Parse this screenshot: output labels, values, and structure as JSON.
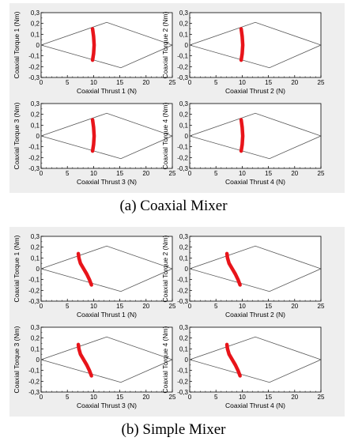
{
  "figure": {
    "caption_a": "(a) Coaxial Mixer",
    "caption_b": "(b) Simple Mixer"
  },
  "colors": {
    "panel_background": "#eeeeee",
    "envelope_line": "#555555",
    "trajectory": "#e8141a"
  },
  "chart_data": [
    {
      "type": "line",
      "group": "Coaxial Mixer",
      "xlabel": "Coaxial Thrust 1 (N)",
      "ylabel": "Coaxial Torque 1 (Nm)",
      "xlim": [
        0,
        25
      ],
      "ylim": [
        -0.3,
        0.3
      ],
      "xticks": [
        "0",
        "5",
        "10",
        "15",
        "20",
        "25"
      ],
      "yticks": [
        "-0,3",
        "-0,2",
        "-0,1",
        "0",
        "0,1",
        "0,2",
        "0,3"
      ],
      "envelope": [
        [
          0,
          0
        ],
        [
          12.5,
          0.21
        ],
        [
          25,
          0
        ],
        [
          15.2,
          -0.21
        ],
        [
          0,
          0
        ]
      ],
      "trajectory": [
        [
          9.8,
          0.15
        ],
        [
          10.0,
          0.08
        ],
        [
          10.1,
          0.0
        ],
        [
          10.0,
          -0.08
        ],
        [
          9.8,
          -0.14
        ]
      ]
    },
    {
      "type": "line",
      "group": "Coaxial Mixer",
      "xlabel": "Coaxial Thrust 2 (N)",
      "ylabel": "Coaxial Torque 2 (Nm)",
      "xlim": [
        0,
        25
      ],
      "ylim": [
        -0.3,
        0.3
      ],
      "xticks": [
        "0",
        "5",
        "10",
        "15",
        "20",
        "25"
      ],
      "yticks": [
        "-0,3",
        "-0,2",
        "-0,1",
        "0",
        "0,1",
        "0,2",
        "0,3"
      ],
      "envelope": [
        [
          0,
          0
        ],
        [
          12.5,
          0.21
        ],
        [
          25,
          0
        ],
        [
          15.2,
          -0.21
        ],
        [
          0,
          0
        ]
      ],
      "trajectory": [
        [
          9.8,
          0.15
        ],
        [
          10.0,
          0.08
        ],
        [
          10.1,
          0.0
        ],
        [
          10.0,
          -0.08
        ],
        [
          9.8,
          -0.14
        ]
      ]
    },
    {
      "type": "line",
      "group": "Coaxial Mixer",
      "xlabel": "Coaxial Thrust 3 (N)",
      "ylabel": "Coaxial Torque 3 (Nm)",
      "xlim": [
        0,
        25
      ],
      "ylim": [
        -0.3,
        0.3
      ],
      "xticks": [
        "0",
        "5",
        "10",
        "15",
        "20",
        "25"
      ],
      "yticks": [
        "-0,3",
        "-0,2",
        "-0,1",
        "0",
        "0,1",
        "0,2",
        "0,3"
      ],
      "envelope": [
        [
          0,
          0
        ],
        [
          12.5,
          0.21
        ],
        [
          25,
          0
        ],
        [
          15.2,
          -0.21
        ],
        [
          0,
          0
        ]
      ],
      "trajectory": [
        [
          9.8,
          0.15
        ],
        [
          10.0,
          0.08
        ],
        [
          10.1,
          0.0
        ],
        [
          10.0,
          -0.08
        ],
        [
          9.8,
          -0.14
        ]
      ]
    },
    {
      "type": "line",
      "group": "Coaxial Mixer",
      "xlabel": "Coaxial Thrust 4 (N)",
      "ylabel": "Coaxial Torque 4 (Nm)",
      "xlim": [
        0,
        25
      ],
      "ylim": [
        -0.3,
        0.3
      ],
      "xticks": [
        "0",
        "5",
        "10",
        "15",
        "20",
        "25"
      ],
      "yticks": [
        "-0,3",
        "-0,2",
        "-0,1",
        "0",
        "0,1",
        "0,2",
        "0,3"
      ],
      "envelope": [
        [
          0,
          0
        ],
        [
          12.5,
          0.21
        ],
        [
          25,
          0
        ],
        [
          15.2,
          -0.21
        ],
        [
          0,
          0
        ]
      ],
      "trajectory": [
        [
          9.8,
          0.15
        ],
        [
          10.0,
          0.08
        ],
        [
          10.1,
          0.0
        ],
        [
          10.0,
          -0.08
        ],
        [
          9.8,
          -0.14
        ]
      ]
    },
    {
      "type": "line",
      "group": "Simple Mixer",
      "xlabel": "Coaxial Thrust 1 (N)",
      "ylabel": "Coaxial Torque 1 (Nm)",
      "xlim": [
        0,
        25
      ],
      "ylim": [
        -0.3,
        0.3
      ],
      "xticks": [
        "0",
        "5",
        "10",
        "15",
        "20",
        "25"
      ],
      "yticks": [
        "-0,3",
        "-0,2",
        "-0,1",
        "0",
        "0,1",
        "0,2",
        "0,3"
      ],
      "envelope": [
        [
          0,
          0
        ],
        [
          12.5,
          0.21
        ],
        [
          25,
          0
        ],
        [
          15.2,
          -0.21
        ],
        [
          0,
          0
        ]
      ],
      "trajectory": [
        [
          7.1,
          0.14
        ],
        [
          7.2,
          0.1
        ],
        [
          7.5,
          0.05
        ],
        [
          8.1,
          0.0
        ],
        [
          8.7,
          -0.05
        ],
        [
          9.2,
          -0.1
        ],
        [
          9.6,
          -0.15
        ]
      ]
    },
    {
      "type": "line",
      "group": "Simple Mixer",
      "xlabel": "Coaxial Thrust 2 (N)",
      "ylabel": "Coaxial Torque 2 (Nm)",
      "xlim": [
        0,
        25
      ],
      "ylim": [
        -0.3,
        0.3
      ],
      "xticks": [
        "0",
        "5",
        "10",
        "15",
        "20",
        "25"
      ],
      "yticks": [
        "-0,3",
        "-0,2",
        "-0,1",
        "0",
        "0,1",
        "0,2",
        "0,3"
      ],
      "envelope": [
        [
          0,
          0
        ],
        [
          12.5,
          0.21
        ],
        [
          25,
          0
        ],
        [
          15.2,
          -0.21
        ],
        [
          0,
          0
        ]
      ],
      "trajectory": [
        [
          7.1,
          0.14
        ],
        [
          7.2,
          0.1
        ],
        [
          7.5,
          0.05
        ],
        [
          8.1,
          0.0
        ],
        [
          8.7,
          -0.05
        ],
        [
          9.2,
          -0.1
        ],
        [
          9.6,
          -0.15
        ]
      ]
    },
    {
      "type": "line",
      "group": "Simple Mixer",
      "xlabel": "Coaxial Thrust 3 (N)",
      "ylabel": "Coaxial Torque 3 (Nm)",
      "xlim": [
        0,
        25
      ],
      "ylim": [
        -0.3,
        0.3
      ],
      "xticks": [
        "0",
        "5",
        "10",
        "15",
        "20",
        "25"
      ],
      "yticks": [
        "-0,3",
        "-0,2",
        "-0,1",
        "0",
        "0,1",
        "0,2",
        "0,3"
      ],
      "envelope": [
        [
          0,
          0
        ],
        [
          12.5,
          0.21
        ],
        [
          25,
          0
        ],
        [
          15.2,
          -0.21
        ],
        [
          0,
          0
        ]
      ],
      "trajectory": [
        [
          7.1,
          0.14
        ],
        [
          7.2,
          0.1
        ],
        [
          7.5,
          0.05
        ],
        [
          8.1,
          0.0
        ],
        [
          8.7,
          -0.05
        ],
        [
          9.2,
          -0.1
        ],
        [
          9.6,
          -0.15
        ]
      ]
    },
    {
      "type": "line",
      "group": "Simple Mixer",
      "xlabel": "Coaxial Thrust 4 (N)",
      "ylabel": "Coaxial Torque 4 (Nm)",
      "xlim": [
        0,
        25
      ],
      "ylim": [
        -0.3,
        0.3
      ],
      "xticks": [
        "0",
        "5",
        "10",
        "15",
        "20",
        "25"
      ],
      "yticks": [
        "-0,3",
        "-0,2",
        "-0,1",
        "0",
        "0,1",
        "0,2",
        "0,3"
      ],
      "envelope": [
        [
          0,
          0
        ],
        [
          12.5,
          0.21
        ],
        [
          25,
          0
        ],
        [
          15.2,
          -0.21
        ],
        [
          0,
          0
        ]
      ],
      "trajectory": [
        [
          7.1,
          0.14
        ],
        [
          7.2,
          0.1
        ],
        [
          7.5,
          0.05
        ],
        [
          8.1,
          0.0
        ],
        [
          8.7,
          -0.05
        ],
        [
          9.2,
          -0.1
        ],
        [
          9.6,
          -0.15
        ]
      ]
    }
  ]
}
